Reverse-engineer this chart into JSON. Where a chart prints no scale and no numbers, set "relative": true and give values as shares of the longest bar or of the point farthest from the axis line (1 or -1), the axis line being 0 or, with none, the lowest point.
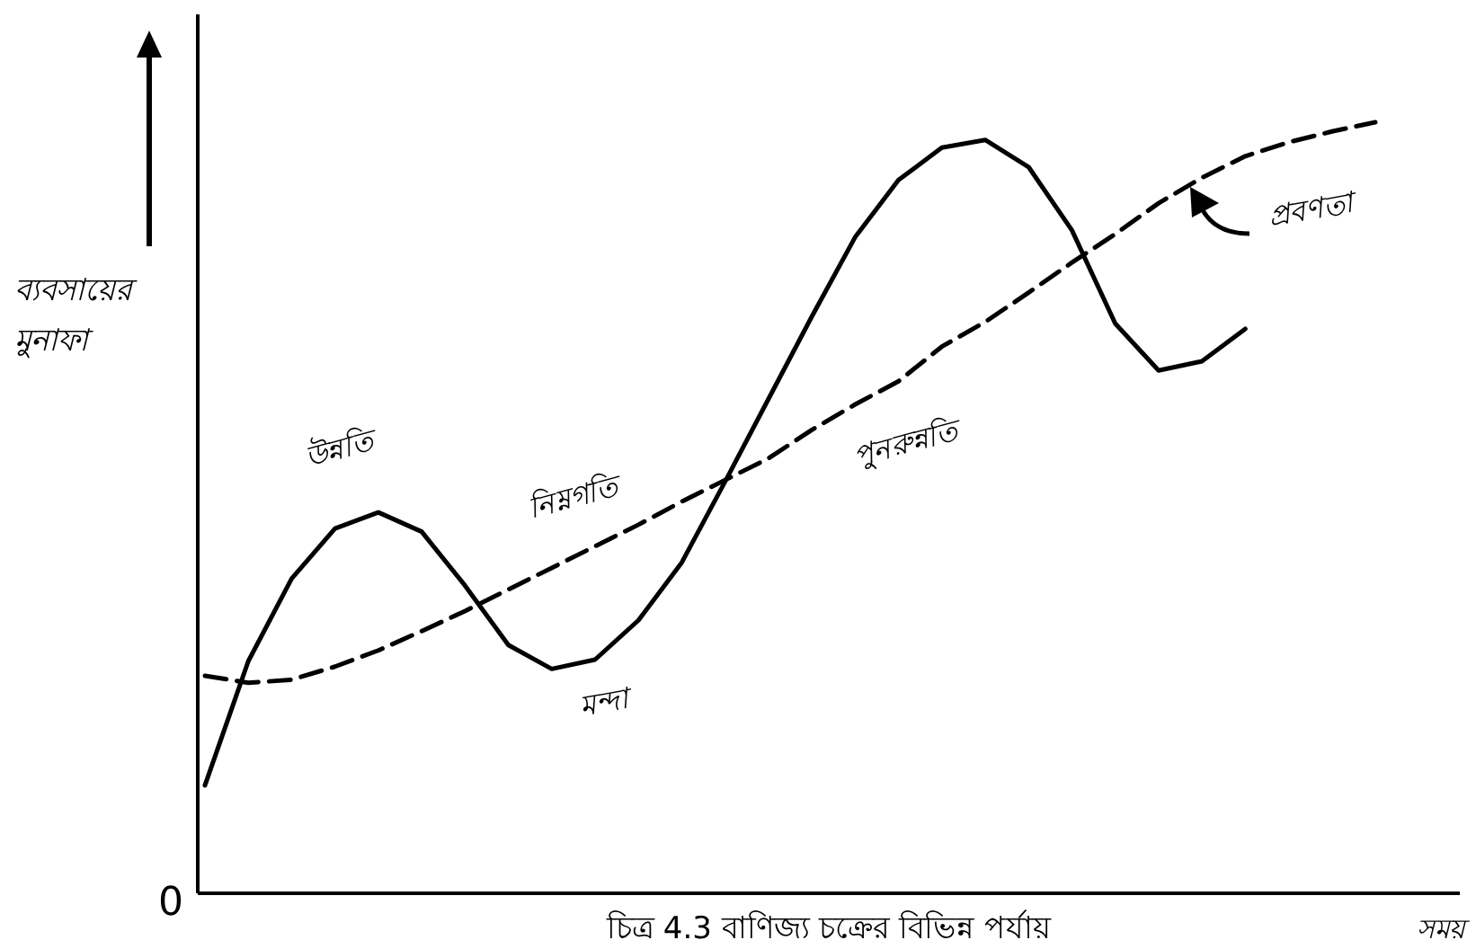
{
  "chart_data": {
    "type": "line",
    "relative": true,
    "ylabel": "ব্যবসায়ের মুনাফা",
    "xlabel": "সময়",
    "categories": [
      null,
      null,
      null,
      null,
      null,
      null,
      null,
      null,
      null,
      null,
      null,
      null,
      null,
      null,
      null,
      null,
      null,
      null,
      null,
      null,
      null,
      null,
      null,
      null,
      null,
      null,
      null,
      null
    ],
    "series": [
      {
        "color": "#000000",
        "line_style": "solid",
        "values": [
          0.14,
          0.301,
          0.408,
          0.473,
          0.494,
          0.469,
          0.399,
          0.322,
          0.291,
          0.303,
          0.354,
          0.429,
          0.534,
          0.641,
          0.748,
          0.851,
          0.925,
          0.967,
          0.977,
          0.942,
          0.86,
          0.739,
          0.678,
          0.69,
          0.732,
          null,
          null,
          null
        ]
      },
      {
        "color": "#000000",
        "line_style": "dashed",
        "values": [
          0.282,
          0.273,
          0.277,
          0.294,
          0.315,
          0.34,
          0.366,
          0.394,
          0.422,
          0.45,
          0.478,
          0.508,
          0.536,
          0.564,
          0.601,
          0.634,
          0.664,
          0.709,
          0.741,
          0.779,
          0.818,
          0.855,
          0.895,
          0.928,
          0.956,
          0.974,
          0.988,
          1.0
        ]
      }
    ],
    "annotations": [
      "উন্নতি",
      "নিম্নগতি",
      "মন্দা",
      "পুনরুন্নতি",
      "প্রবণতা",
      "0",
      "চিত্র 4.3 বাণিজ্য চক্রের বিভিন্ন পর্যায়"
    ]
  }
}
